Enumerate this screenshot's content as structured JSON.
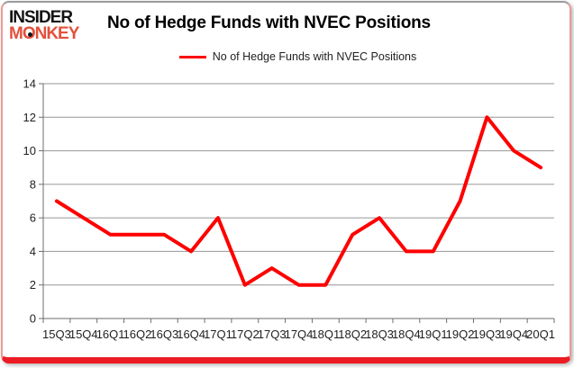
{
  "logo": {
    "line1": "INSIDER",
    "line2": "MONKEY"
  },
  "header": {
    "title": "No of Hedge Funds with NVEC Positions"
  },
  "legend": {
    "label": "No of Hedge Funds with NVEC Positions"
  },
  "chart_data": {
    "type": "line",
    "title": "No of Hedge Funds with NVEC Positions",
    "categories": [
      "15Q3",
      "15Q4",
      "16Q1",
      "16Q2",
      "16Q3",
      "16Q4",
      "17Q1",
      "17Q2",
      "17Q3",
      "17Q4",
      "18Q1",
      "18Q2",
      "18Q3",
      "18Q4",
      "19Q1",
      "19Q2",
      "19Q3",
      "19Q4",
      "20Q1"
    ],
    "series": [
      {
        "name": "No of Hedge Funds with NVEC Positions",
        "values": [
          7,
          6,
          5,
          5,
          5,
          4,
          6,
          2,
          3,
          2,
          2,
          5,
          6,
          4,
          4,
          7,
          12,
          10,
          9
        ],
        "color": "#fe0000"
      }
    ],
    "xlabel": "",
    "ylabel": "",
    "ylim": [
      0,
      14
    ],
    "yticks": [
      0,
      2,
      4,
      6,
      8,
      10,
      12,
      14
    ],
    "grid": "horizontal",
    "legend_position": "top-center"
  },
  "colors": {
    "line": "#fe0000",
    "gridline": "#969696",
    "axis": "#6e6e6e",
    "tick_text": "#1f1f1f",
    "border_bottom": "#ed1b24",
    "monkey_red": "#e2513c"
  }
}
